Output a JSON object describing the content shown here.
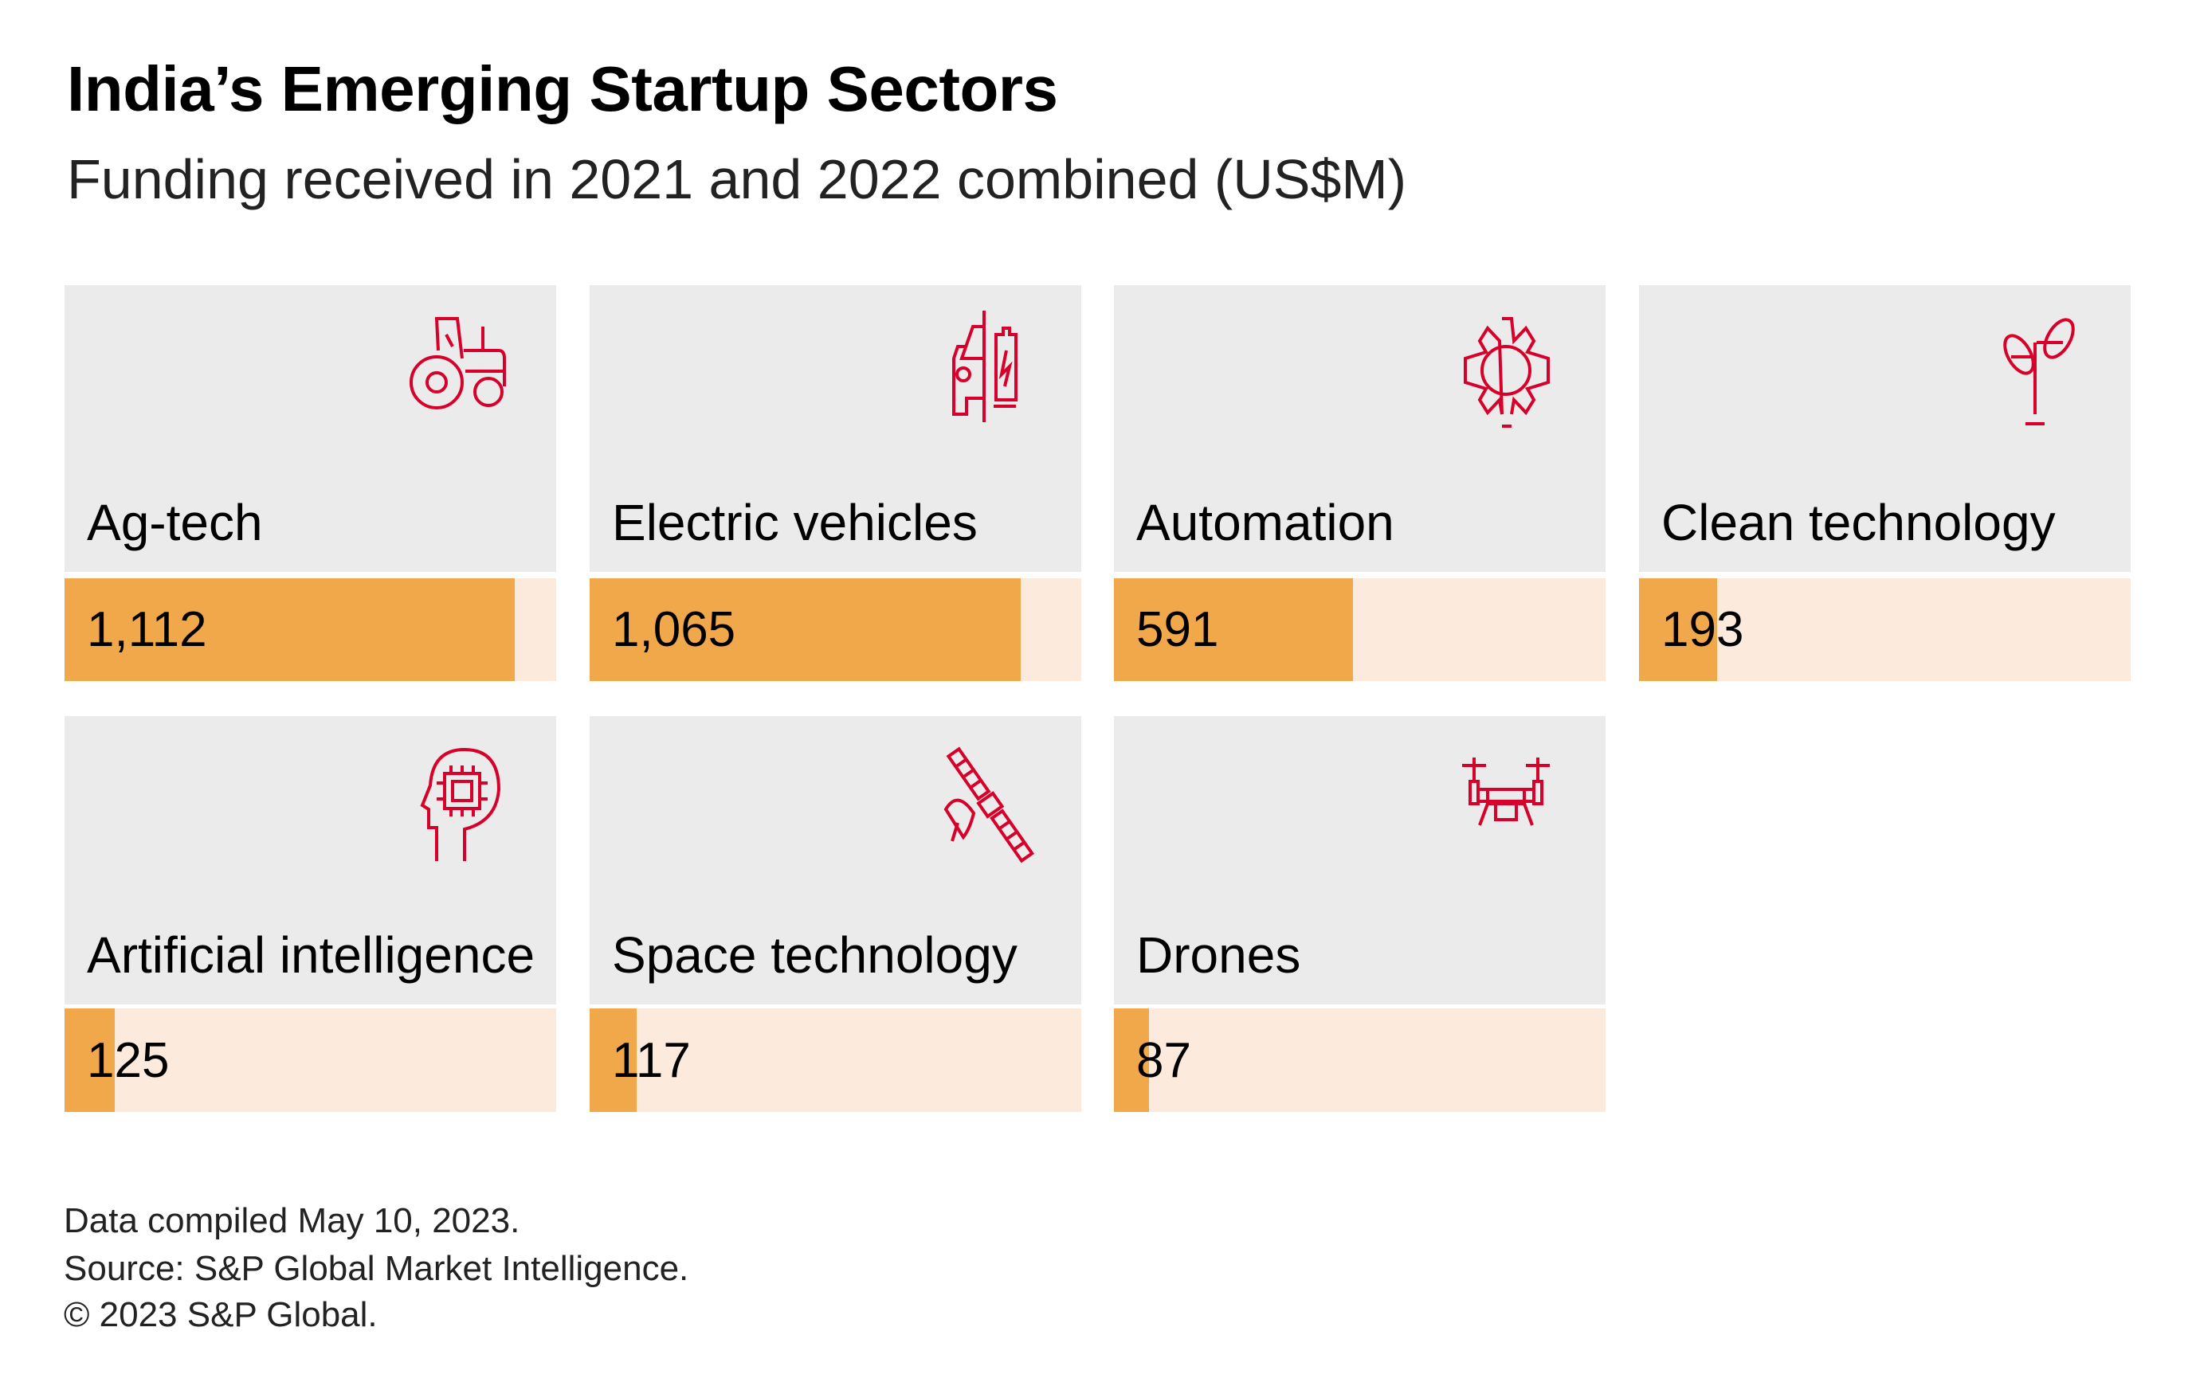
{
  "title": "India’s Emerging Startup Sectors",
  "subtitle": "Funding received in 2021 and 2022 combined (US$M)",
  "colors": {
    "icon": "#d6002a",
    "bar_fill": "#f0a84b",
    "bar_track": "#fcebdc",
    "card_bg": "#ebebeb"
  },
  "chart_data": {
    "type": "bar",
    "title": "India’s Emerging Startup Sectors",
    "subtitle": "Funding received in 2021 and 2022 combined (US$M)",
    "categories": [
      "Ag-tech",
      "Electric vehicles",
      "Automation",
      "Clean technology",
      "Artificial intelligence",
      "Space technology",
      "Drones"
    ],
    "values": [
      1112,
      1065,
      591,
      193,
      125,
      117,
      87
    ],
    "value_labels": [
      "1,112",
      "1,065",
      "591",
      "193",
      "125",
      "117",
      "87"
    ],
    "icons": [
      "tractor-icon",
      "electric-vehicle-icon",
      "gear-icon",
      "wind-turbine-icon",
      "ai-head-icon",
      "satellite-icon",
      "drone-icon"
    ],
    "xlim": [
      0,
      1215
    ],
    "grid": false
  },
  "footer": {
    "line1": "Data compiled May 10, 2023.",
    "line2": "Source: S&P Global Market Intelligence.",
    "line3": "© 2023 S&P Global."
  }
}
